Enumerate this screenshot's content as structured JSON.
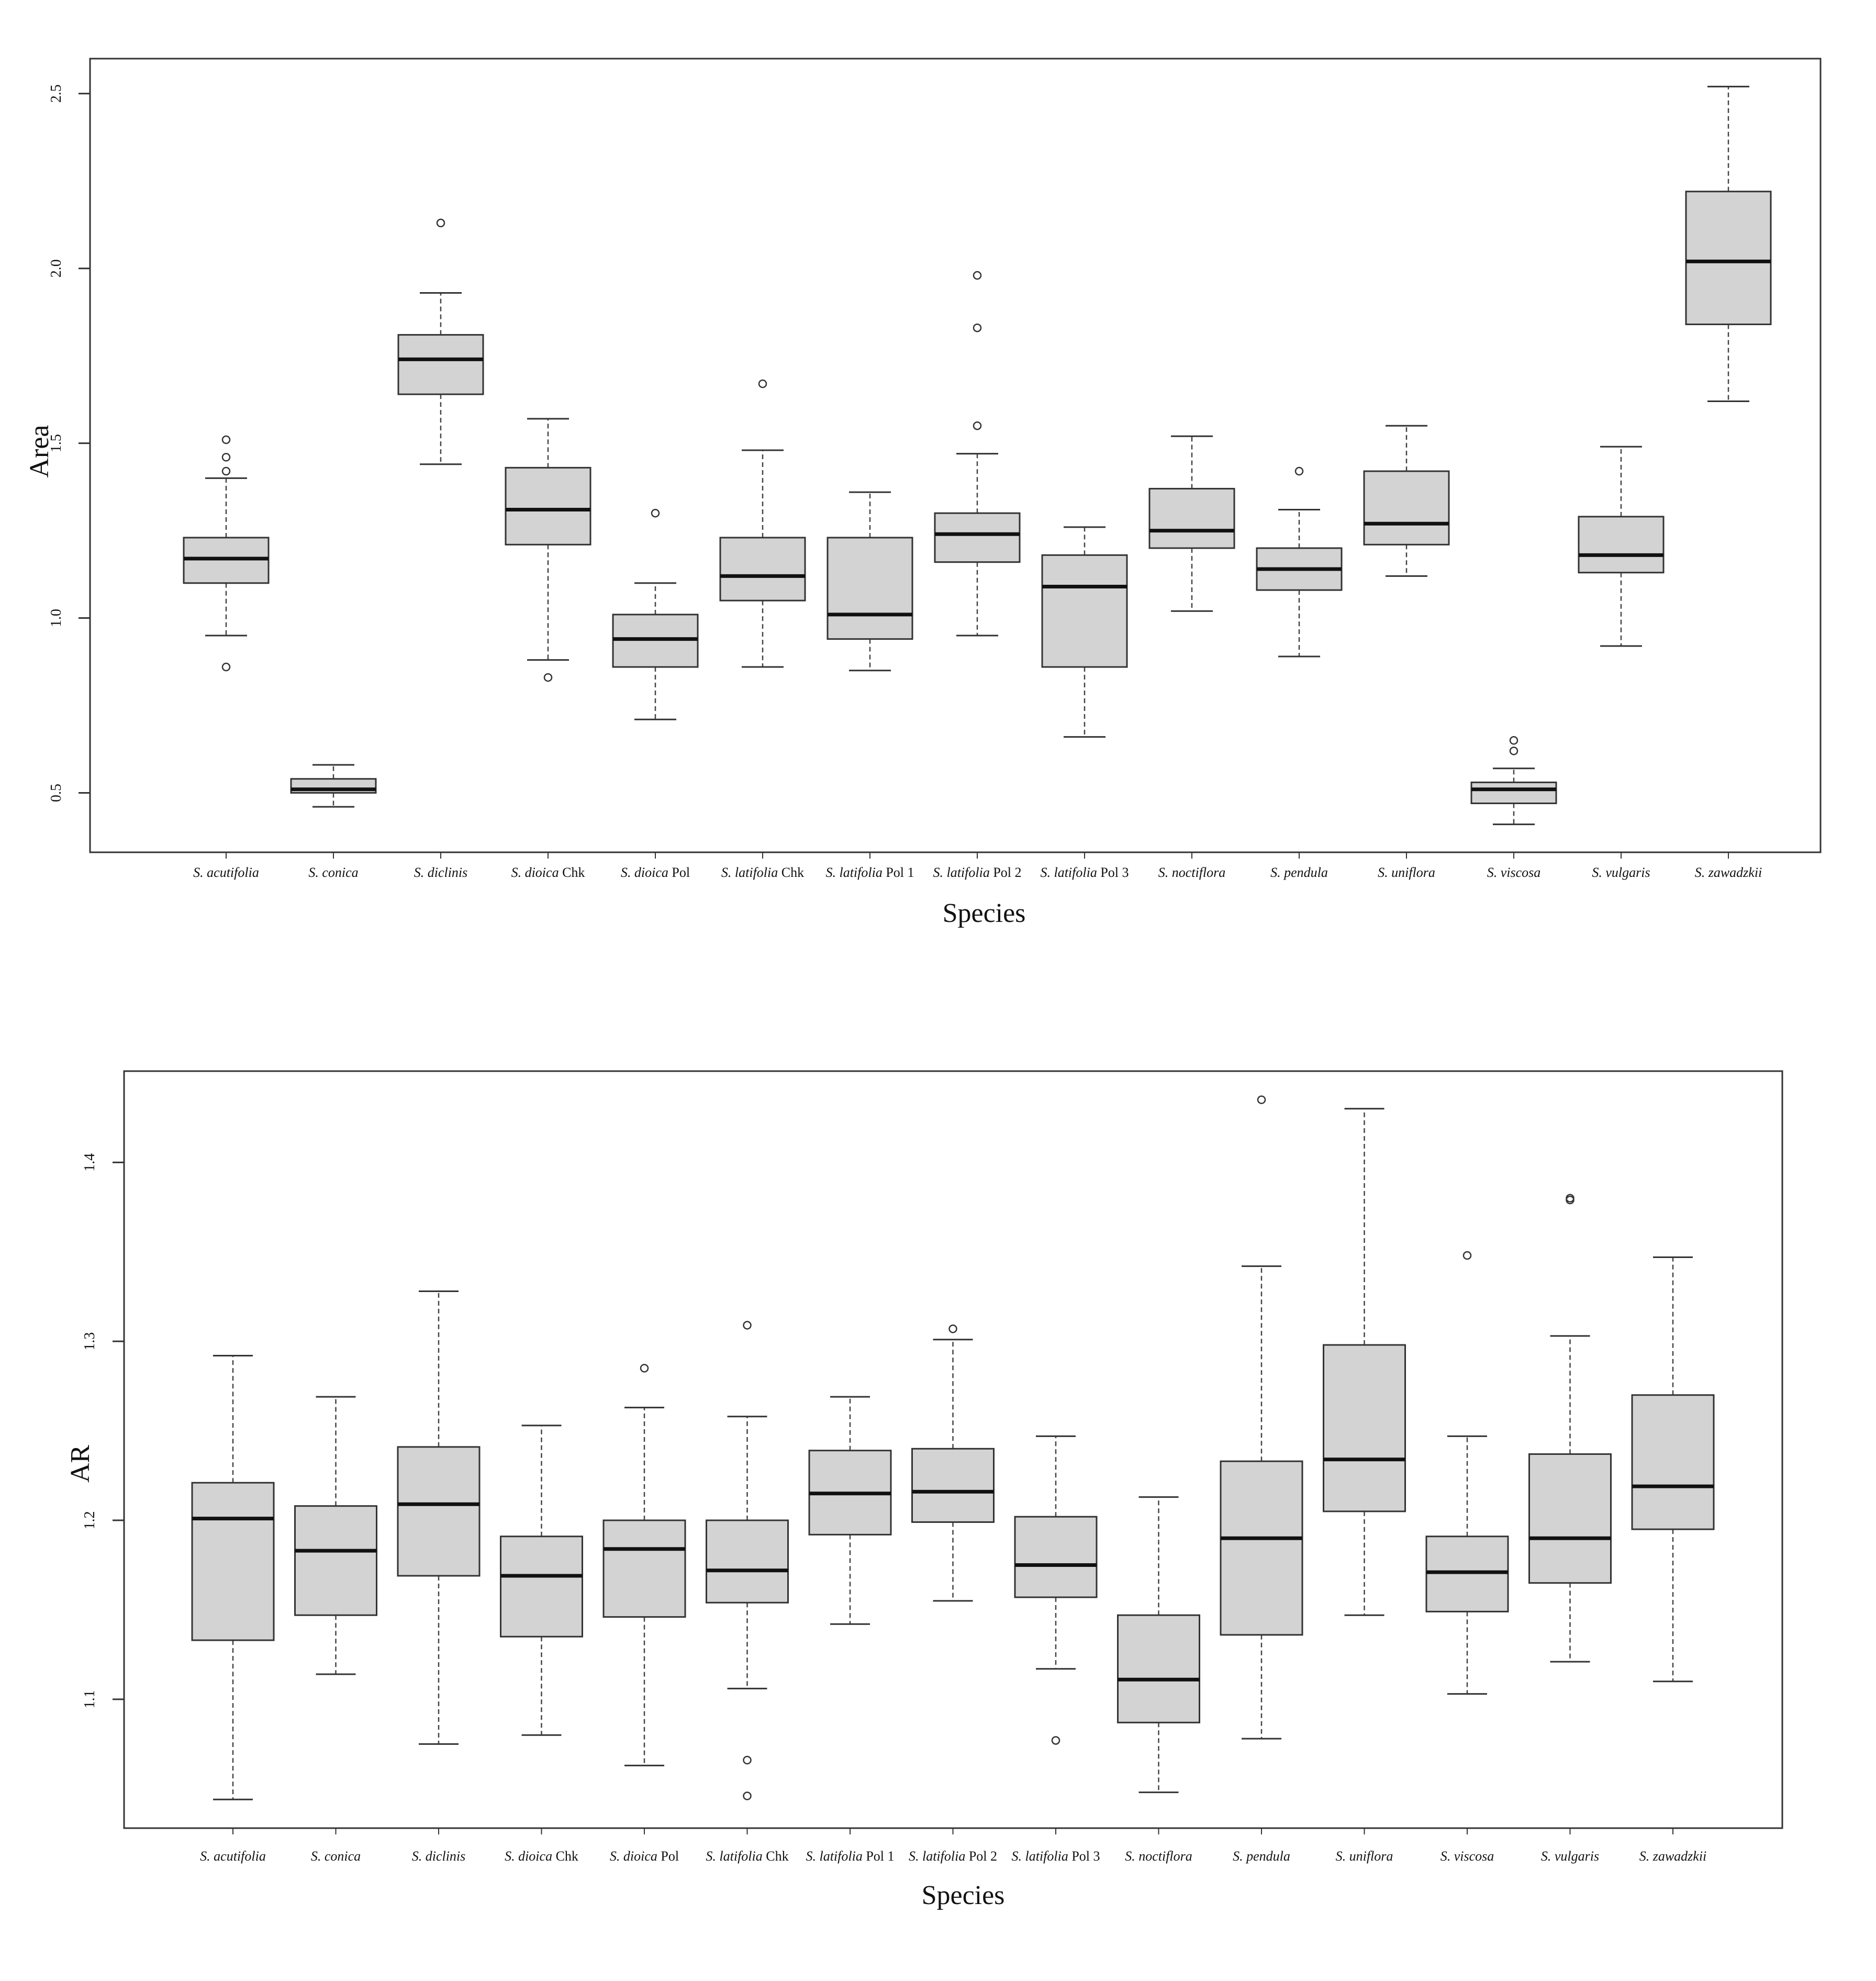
{
  "chart_data": [
    {
      "type": "boxplot",
      "xlabel": "Species",
      "ylabel": "Area",
      "ylim": [
        0.33,
        2.6
      ],
      "yticks": [
        "0.5",
        "1.0",
        "1.5",
        "2.0",
        "2.5"
      ],
      "categories": [
        {
          "species": "S. acutifolia",
          "suffix": ""
        },
        {
          "species": "S. conica",
          "suffix": ""
        },
        {
          "species": "S. diclinis",
          "suffix": ""
        },
        {
          "species": "S. dioica",
          "suffix": " Chk"
        },
        {
          "species": "S. dioica",
          "suffix": " Pol"
        },
        {
          "species": "S. latifolia",
          "suffix": " Chk"
        },
        {
          "species": "S. latifolia",
          "suffix": " Pol 1"
        },
        {
          "species": "S. latifolia",
          "suffix": " Pol 2"
        },
        {
          "species": "S. latifolia",
          "suffix": " Pol 3"
        },
        {
          "species": "S. noctiflora",
          "suffix": ""
        },
        {
          "species": "S. pendula",
          "suffix": ""
        },
        {
          "species": "S. uniflora",
          "suffix": ""
        },
        {
          "species": "S. viscosa",
          "suffix": ""
        },
        {
          "species": "S. vulgaris",
          "suffix": ""
        },
        {
          "species": "S. zawadzkii",
          "suffix": ""
        }
      ],
      "boxes": [
        {
          "min": 0.95,
          "q1": 1.1,
          "median": 1.17,
          "q3": 1.23,
          "max": 1.4,
          "outliers": [
            0.86,
            1.42,
            1.46,
            1.51
          ]
        },
        {
          "min": 0.46,
          "q1": 0.5,
          "median": 0.51,
          "q3": 0.54,
          "max": 0.58,
          "outliers": []
        },
        {
          "min": 1.44,
          "q1": 1.64,
          "median": 1.74,
          "q3": 1.81,
          "max": 1.93,
          "outliers": [
            2.13
          ]
        },
        {
          "min": 0.88,
          "q1": 1.21,
          "median": 1.31,
          "q3": 1.43,
          "max": 1.57,
          "outliers": [
            0.83
          ]
        },
        {
          "min": 0.71,
          "q1": 0.86,
          "median": 0.94,
          "q3": 1.01,
          "max": 1.1,
          "outliers": [
            1.3
          ]
        },
        {
          "min": 0.86,
          "q1": 1.05,
          "median": 1.12,
          "q3": 1.23,
          "max": 1.48,
          "outliers": [
            1.67
          ]
        },
        {
          "min": 0.85,
          "q1": 0.94,
          "median": 1.01,
          "q3": 1.23,
          "max": 1.36,
          "outliers": []
        },
        {
          "min": 0.95,
          "q1": 1.16,
          "median": 1.24,
          "q3": 1.3,
          "max": 1.47,
          "outliers": [
            1.55,
            1.83,
            1.98
          ]
        },
        {
          "min": 0.66,
          "q1": 0.86,
          "median": 1.09,
          "q3": 1.18,
          "max": 1.26,
          "outliers": []
        },
        {
          "min": 1.02,
          "q1": 1.2,
          "median": 1.25,
          "q3": 1.37,
          "max": 1.52,
          "outliers": []
        },
        {
          "min": 0.89,
          "q1": 1.08,
          "median": 1.14,
          "q3": 1.2,
          "max": 1.31,
          "outliers": [
            1.42
          ]
        },
        {
          "min": 1.12,
          "q1": 1.21,
          "median": 1.27,
          "q3": 1.42,
          "max": 1.55,
          "outliers": []
        },
        {
          "min": 0.41,
          "q1": 0.47,
          "median": 0.51,
          "q3": 0.53,
          "max": 0.57,
          "outliers": [
            0.62,
            0.65
          ]
        },
        {
          "min": 0.92,
          "q1": 1.13,
          "median": 1.18,
          "q3": 1.29,
          "max": 1.49,
          "outliers": []
        },
        {
          "min": 1.62,
          "q1": 1.84,
          "median": 2.02,
          "q3": 2.22,
          "max": 2.52,
          "outliers": []
        }
      ]
    },
    {
      "type": "boxplot",
      "xlabel": "Species",
      "ylabel": "AR",
      "ylim": [
        1.028,
        1.451
      ],
      "yticks": [
        "1.1",
        "1.2",
        "1.3",
        "1.4"
      ],
      "categories": [
        {
          "species": "S. acutifolia",
          "suffix": ""
        },
        {
          "species": "S. conica",
          "suffix": ""
        },
        {
          "species": "S. diclinis",
          "suffix": ""
        },
        {
          "species": "S. dioica",
          "suffix": " Chk"
        },
        {
          "species": "S. dioica",
          "suffix": " Pol"
        },
        {
          "species": "S. latifolia",
          "suffix": " Chk"
        },
        {
          "species": "S. latifolia",
          "suffix": " Pol 1"
        },
        {
          "species": "S. latifolia",
          "suffix": " Pol 2"
        },
        {
          "species": "S. latifolia",
          "suffix": " Pol 3"
        },
        {
          "species": "S. noctiflora",
          "suffix": ""
        },
        {
          "species": "S. pendula",
          "suffix": ""
        },
        {
          "species": "S. uniflora",
          "suffix": ""
        },
        {
          "species": "S. viscosa",
          "suffix": ""
        },
        {
          "species": "S. vulgaris",
          "suffix": ""
        },
        {
          "species": "S. zawadzkii",
          "suffix": ""
        }
      ],
      "boxes": [
        {
          "min": 1.044,
          "q1": 1.133,
          "median": 1.201,
          "q3": 1.221,
          "max": 1.292,
          "outliers": []
        },
        {
          "min": 1.114,
          "q1": 1.147,
          "median": 1.183,
          "q3": 1.208,
          "max": 1.269,
          "outliers": []
        },
        {
          "min": 1.075,
          "q1": 1.169,
          "median": 1.209,
          "q3": 1.241,
          "max": 1.328,
          "outliers": []
        },
        {
          "min": 1.08,
          "q1": 1.135,
          "median": 1.169,
          "q3": 1.191,
          "max": 1.253,
          "outliers": []
        },
        {
          "min": 1.063,
          "q1": 1.146,
          "median": 1.184,
          "q3": 1.2,
          "max": 1.263,
          "outliers": [
            1.285
          ]
        },
        {
          "min": 1.106,
          "q1": 1.154,
          "median": 1.172,
          "q3": 1.2,
          "max": 1.258,
          "outliers": [
            1.046,
            1.066,
            1.309
          ]
        },
        {
          "min": 1.142,
          "q1": 1.192,
          "median": 1.215,
          "q3": 1.239,
          "max": 1.269,
          "outliers": []
        },
        {
          "min": 1.155,
          "q1": 1.199,
          "median": 1.216,
          "q3": 1.24,
          "max": 1.301,
          "outliers": [
            1.307
          ]
        },
        {
          "min": 1.117,
          "q1": 1.157,
          "median": 1.175,
          "q3": 1.202,
          "max": 1.247,
          "outliers": [
            1.077
          ]
        },
        {
          "min": 1.048,
          "q1": 1.087,
          "median": 1.111,
          "q3": 1.147,
          "max": 1.213,
          "outliers": []
        },
        {
          "min": 1.078,
          "q1": 1.136,
          "median": 1.19,
          "q3": 1.233,
          "max": 1.342,
          "outliers": [
            1.435
          ]
        },
        {
          "min": 1.147,
          "q1": 1.205,
          "median": 1.234,
          "q3": 1.298,
          "max": 1.43,
          "outliers": []
        },
        {
          "min": 1.103,
          "q1": 1.149,
          "median": 1.171,
          "q3": 1.191,
          "max": 1.247,
          "outliers": [
            1.348
          ]
        },
        {
          "min": 1.121,
          "q1": 1.165,
          "median": 1.19,
          "q3": 1.237,
          "max": 1.303,
          "outliers": [
            1.379,
            1.38
          ]
        },
        {
          "min": 1.11,
          "q1": 1.195,
          "median": 1.219,
          "q3": 1.27,
          "max": 1.347,
          "outliers": []
        }
      ]
    }
  ]
}
